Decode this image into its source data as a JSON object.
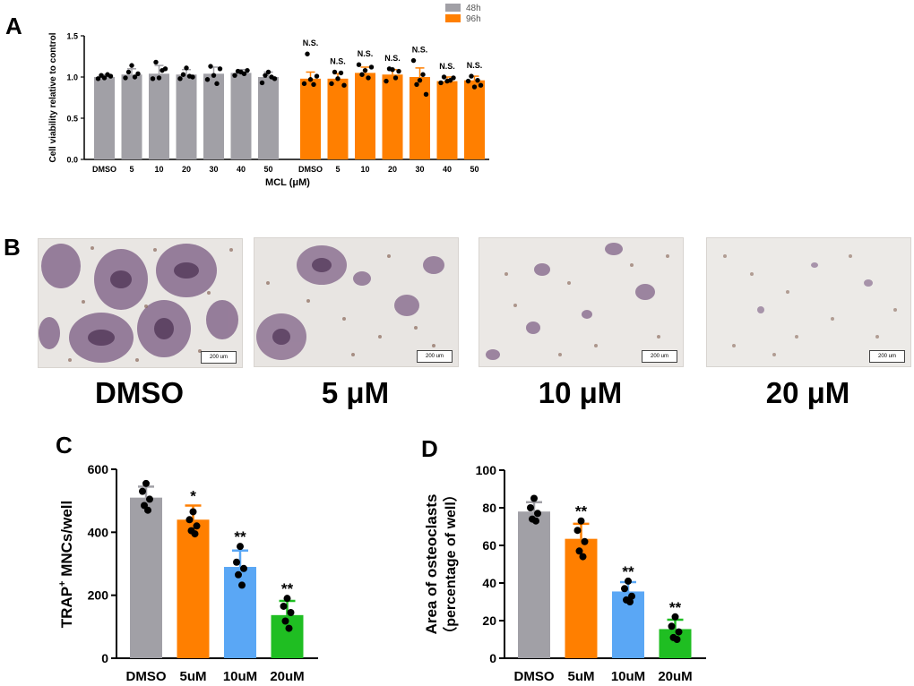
{
  "panels": {
    "a": "A",
    "b": "B",
    "c": "C",
    "d": "D"
  },
  "colors": {
    "gray": "#a1a0a6",
    "orange": "#ff7f00",
    "blue": "#5aa7f5",
    "green": "#1fbe22",
    "black": "#000000"
  },
  "panel_b": {
    "images": [
      {
        "label": "DMSO",
        "scale": "200 um",
        "description": "many large multinucleated TRAP-positive osteoclasts"
      },
      {
        "label": "5 μM",
        "scale": "200 um",
        "description": "fewer large osteoclasts"
      },
      {
        "label": "10 μM",
        "scale": "200 um",
        "description": "small scattered osteoclasts"
      },
      {
        "label": "20 μM",
        "scale": "200 um",
        "description": "few small stained cells"
      }
    ]
  },
  "chart_data": [
    {
      "id": "A",
      "type": "bar",
      "title": "",
      "xlabel": "MCL (μM)",
      "ylabel": "Cell viability relative to control",
      "ylim": [
        0,
        1.5
      ],
      "yticks": [
        "0.0",
        "0.5",
        "1.0",
        "1.5"
      ],
      "legend": {
        "position": "top-right",
        "entries": [
          "48h",
          "96h"
        ]
      },
      "series": [
        {
          "name": "48h",
          "categories": [
            "DMSO",
            "5",
            "10",
            "20",
            "30",
            "40",
            "50"
          ],
          "values": [
            1.0,
            1.03,
            1.04,
            1.03,
            1.04,
            1.05,
            1.0
          ],
          "errors": [
            0.03,
            0.07,
            0.1,
            0.06,
            0.08,
            0.04,
            0.06
          ],
          "points": [
            [
              0.98,
              1.02,
              0.99,
              1.03,
              1.01
            ],
            [
              0.99,
              1.06,
              1.14,
              1.0,
              1.04
            ],
            [
              0.98,
              1.18,
              0.99,
              1.08,
              1.1
            ],
            [
              0.98,
              1.03,
              1.11,
              1.01,
              1.0
            ],
            [
              0.97,
              1.13,
              1.02,
              0.92,
              1.1
            ],
            [
              1.02,
              1.07,
              1.06,
              1.04,
              1.08
            ],
            [
              0.93,
              1.02,
              1.06,
              1.0,
              0.98
            ]
          ]
        },
        {
          "name": "96h",
          "categories": [
            "DMSO",
            "5",
            "10",
            "20",
            "30",
            "40",
            "50"
          ],
          "values": [
            0.98,
            0.98,
            1.05,
            1.03,
            1.0,
            0.95,
            0.96
          ],
          "errors": [
            0.08,
            0.06,
            0.07,
            0.06,
            0.11,
            0.05,
            0.05
          ],
          "points": [
            [
              0.92,
              1.28,
              0.97,
              0.91,
              1.01
            ],
            [
              0.92,
              1.06,
              0.98,
              1.05,
              0.9
            ],
            [
              1.15,
              1.03,
              1.08,
              0.99,
              1.12
            ],
            [
              0.95,
              1.1,
              1.09,
              0.99,
              1.07
            ],
            [
              1.2,
              0.91,
              0.96,
              1.03,
              0.79
            ],
            [
              0.93,
              1.0,
              0.95,
              0.96,
              0.99
            ],
            [
              0.95,
              1.01,
              0.88,
              0.96,
              0.9
            ]
          ],
          "annotations": [
            "N.S.",
            "N.S.",
            "N.S.",
            "N.S.",
            "N.S.",
            "N.S.",
            "N.S."
          ]
        }
      ]
    },
    {
      "id": "C",
      "type": "bar",
      "title": "",
      "xlabel": "",
      "ylabel_main": "TRAP",
      "ylabel_sup": "+",
      "ylabel_rest": " MNCs/well",
      "ylim": [
        0,
        600
      ],
      "yticks": [
        "0",
        "200",
        "400",
        "600"
      ],
      "categories": [
        "DMSO",
        "5uM",
        "10uM",
        "20uM"
      ],
      "values": [
        510,
        440,
        290,
        137
      ],
      "errors": [
        35,
        45,
        52,
        45
      ],
      "annotations": [
        "",
        "*",
        "**",
        "**"
      ],
      "points": [
        [
          555,
          530,
          505,
          485,
          470
        ],
        [
          465,
          440,
          420,
          405,
          395
        ],
        [
          355,
          305,
          285,
          265,
          232
        ],
        [
          190,
          165,
          145,
          118,
          95
        ]
      ]
    },
    {
      "id": "D",
      "type": "bar",
      "title": "",
      "xlabel": "",
      "ylabel_line1": "Area of osteoclasts",
      "ylabel_line2": "（percentage of well）",
      "ylim": [
        0,
        100
      ],
      "yticks": [
        "0",
        "20",
        "40",
        "60",
        "80",
        "100"
      ],
      "categories": [
        "DMSO",
        "5uM",
        "10uM",
        "20uM"
      ],
      "values": [
        78,
        63.5,
        35.5,
        15.5
      ],
      "errors": [
        5,
        8,
        5,
        5
      ],
      "annotations": [
        "",
        "**",
        "**",
        "**"
      ],
      "points": [
        [
          85,
          80,
          77,
          74,
          73
        ],
        [
          73,
          68,
          62,
          57,
          54
        ],
        [
          41,
          37,
          33,
          31,
          30
        ],
        [
          22,
          17,
          14,
          11,
          10
        ]
      ]
    }
  ]
}
